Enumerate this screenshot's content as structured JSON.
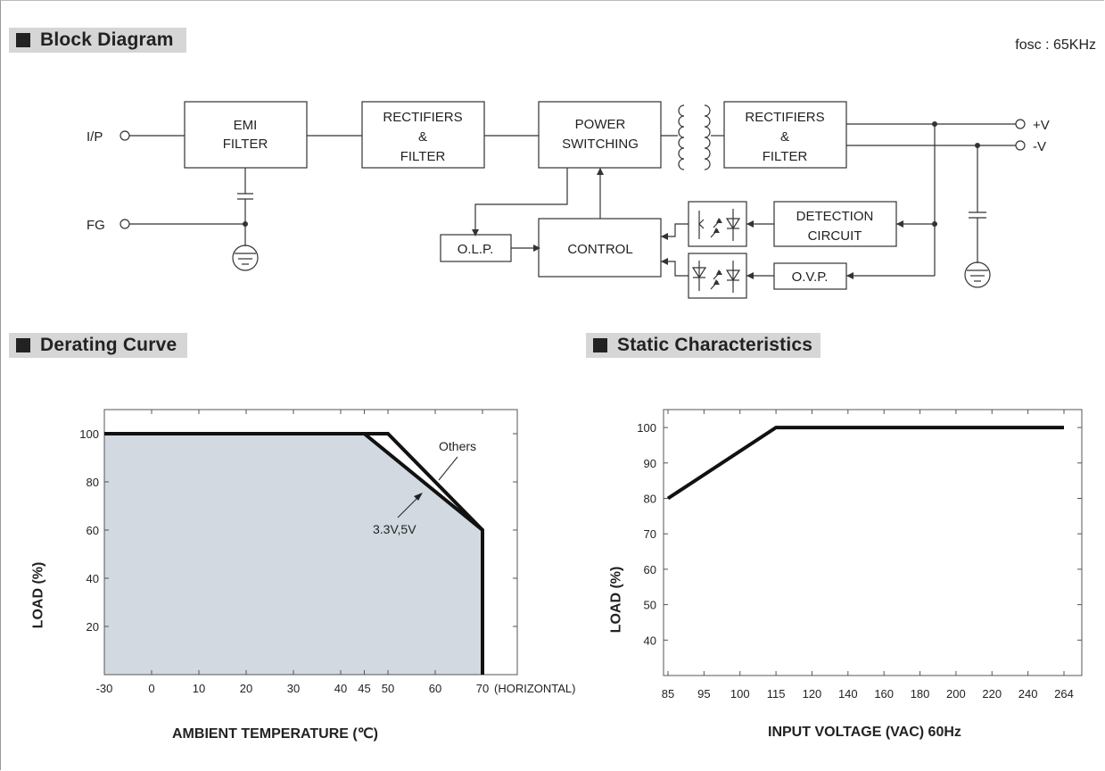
{
  "block_diagram": {
    "header": "Block Diagram",
    "fosc": "fosc : 65KHz",
    "ports": {
      "ip": "I/P",
      "fg": "FG",
      "pos_v": "+V",
      "neg_v": "-V"
    },
    "blocks": {
      "emi_filter": [
        "EMI",
        "FILTER"
      ],
      "rectifiers_in": [
        "RECTIFIERS",
        "&",
        "FILTER"
      ],
      "power_switching": [
        "POWER",
        "SWITCHING"
      ],
      "rectifiers_out": [
        "RECTIFIERS",
        "&",
        "FILTER"
      ],
      "detection": [
        "DETECTION",
        "CIRCUIT"
      ],
      "olp": "O.L.P.",
      "control": "CONTROL",
      "ovp": "O.V.P."
    }
  },
  "derating_curve": {
    "header": "Derating Curve",
    "ylabel": "LOAD (%)",
    "xlabel": "AMBIENT TEMPERATURE (℃)",
    "x_tick_labels": [
      "-30",
      "0",
      "10",
      "20",
      "30",
      "40",
      "45",
      "50",
      "60",
      "70"
    ],
    "x_suffix": "(HORIZONTAL)",
    "y_tick_labels": [
      "20",
      "40",
      "60",
      "80",
      "100"
    ],
    "annotations": {
      "others": "Others",
      "low_v": "3.3V,5V"
    }
  },
  "static_characteristics": {
    "header": "Static Characteristics",
    "ylabel": "LOAD (%)",
    "xlabel": "INPUT VOLTAGE (VAC) 60Hz",
    "x_tick_labels": [
      "85",
      "95",
      "100",
      "115",
      "120",
      "140",
      "160",
      "180",
      "200",
      "220",
      "240",
      "264"
    ],
    "y_tick_labels": [
      "40",
      "50",
      "60",
      "70",
      "80",
      "90",
      "100"
    ]
  },
  "chart_data": [
    {
      "type": "area",
      "x_ticks": [
        -30,
        0,
        10,
        20,
        30,
        40,
        45,
        50,
        60,
        70
      ],
      "y_ticks": [
        20,
        40,
        60,
        80,
        100
      ],
      "ylim": [
        0,
        110
      ],
      "series": [
        {
          "name": "Others",
          "x": [
            -30,
            50,
            70,
            70
          ],
          "y": [
            100,
            100,
            60,
            0
          ]
        },
        {
          "name": "3.3V,5V",
          "x": [
            -30,
            45,
            70,
            70
          ],
          "y": [
            100,
            100,
            60,
            0
          ]
        }
      ],
      "grid": false
    },
    {
      "type": "line",
      "x_ticks": [
        85,
        95,
        100,
        115,
        120,
        140,
        160,
        180,
        200,
        220,
        240,
        264
      ],
      "y_ticks": [
        40,
        50,
        60,
        70,
        80,
        90,
        100
      ],
      "ylim": [
        30,
        105
      ],
      "series": [
        {
          "x": [
            85,
            115,
            264
          ],
          "y": [
            80,
            100,
            100
          ]
        }
      ],
      "grid": false
    }
  ]
}
